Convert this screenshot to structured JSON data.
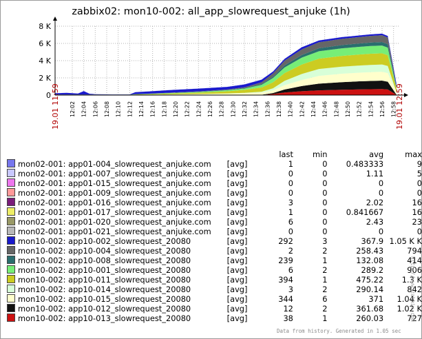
{
  "title": "zabbix02: mon10-002: all_app_slowrequest_anjuke  (1h)",
  "footer": "Data from history. Generated in 1.05 sec",
  "side_label": "http://www.zabbix.com",
  "colors": {
    "axis": "#000000",
    "grid": "#b0b0b0",
    "accent_red": "#b00000",
    "background": "#ffffff"
  },
  "legend_headers": {
    "last": "last",
    "min": "min",
    "avg": "avg",
    "max": "max"
  },
  "legend": [
    {
      "name": "mon02-001: app01-004_slowrequest_anjuke.com",
      "func": "[avg]",
      "last": "1",
      "min": "0",
      "avg": "0.483333",
      "max": "9",
      "color": "#7777ee"
    },
    {
      "name": "mon02-001: app01-007_slowrequest_anjuke.com",
      "func": "[avg]",
      "last": "0",
      "min": "0",
      "avg": "1.11",
      "max": "5",
      "color": "#c8c8ff"
    },
    {
      "name": "mon02-001: app01-015_slowrequest_anjuke.com",
      "func": "[avg]",
      "last": "0",
      "min": "0",
      "avg": "0",
      "max": "0",
      "color": "#ee77ee"
    },
    {
      "name": "mon02-001: app01-009_slowrequest_anjuke.com",
      "func": "[avg]",
      "last": "0",
      "min": "0",
      "avg": "0",
      "max": "0",
      "color": "#ff9999"
    },
    {
      "name": "mon02-001: app01-016_slowrequest_anjuke.com",
      "func": "[avg]",
      "last": "3",
      "min": "0",
      "avg": "2.02",
      "max": "16",
      "color": "#7a1c7a"
    },
    {
      "name": "mon02-001: app01-017_slowrequest_anjuke.com",
      "func": "[avg]",
      "last": "1",
      "min": "0",
      "avg": "0.841667",
      "max": "16",
      "color": "#eeee66"
    },
    {
      "name": "mon02-001: app01-020_slowrequest_anjuke.com",
      "func": "[avg]",
      "last": "6",
      "min": "0",
      "avg": "2.43",
      "max": "23",
      "color": "#999966"
    },
    {
      "name": "mon02-001: app01-021_slowrequest_anjuke.com",
      "func": "[avg]",
      "last": "0",
      "min": "0",
      "avg": "0",
      "max": "0",
      "color": "#b8b8b8"
    },
    {
      "name": "mon10-002: app10-002_slowrequest_20080",
      "func": "[avg]",
      "last": "292",
      "min": "3",
      "avg": "367.9",
      "max": "1.05 K K",
      "color": "#1a1acc"
    },
    {
      "name": "mon10-002: app10-004_slowrequest_20080",
      "func": "[avg]",
      "last": "2",
      "min": "2",
      "avg": "258.43",
      "max": "794",
      "color": "#666666"
    },
    {
      "name": "mon10-002: app10-008_slowrequest_20080",
      "func": "[avg]",
      "last": "239",
      "min": "1",
      "avg": "132.08",
      "max": "414",
      "color": "#2a6e6e"
    },
    {
      "name": "mon10-002: app10-001_slowrequest_20080",
      "func": "[avg]",
      "last": "6",
      "min": "2",
      "avg": "289.2",
      "max": "906",
      "color": "#77ee77"
    },
    {
      "name": "mon10-002: app10-011_slowrequest_20080",
      "func": "[avg]",
      "last": "394",
      "min": "1",
      "avg": "475.22",
      "max": "1.3 K",
      "color": "#cccc22"
    },
    {
      "name": "mon10-002: app10-014_slowrequest_20080",
      "func": "[avg]",
      "last": "3",
      "min": "2",
      "avg": "290.14",
      "max": "842",
      "color": "#d8ffd8"
    },
    {
      "name": "mon10-002: app10-015_slowrequest_20080",
      "func": "[avg]",
      "last": "344",
      "min": "6",
      "avg": "371",
      "max": "1.04 K",
      "color": "#ffffcc"
    },
    {
      "name": "mon10-002: app10-012_slowrequest_20080",
      "func": "[avg]",
      "last": "12",
      "min": "2",
      "avg": "361.68",
      "max": "1.02 K",
      "color": "#111111"
    },
    {
      "name": "mon10-002: app10-013_slowrequest_20080",
      "func": "[avg]",
      "last": "38",
      "min": "1",
      "avg": "260.03",
      "max": "727",
      "color": "#cc1111"
    }
  ],
  "chart_data": {
    "type": "area",
    "title": "zabbix02: mon10-002: all_app_slowrequest_anjuke  (1h)",
    "ylim": [
      0,
      8000
    ],
    "y_ticks": [
      0,
      2000,
      4000,
      6000,
      8000
    ],
    "y_tick_labels": [
      "0",
      "2 K",
      "4 K",
      "6 K",
      "8 K"
    ],
    "x_tick_labels": [
      "12:02",
      "12:04",
      "12:06",
      "12:08",
      "12:10",
      "12:12",
      "12:14",
      "12:16",
      "12:18",
      "12:20",
      "12:22",
      "12:24",
      "12:26",
      "12:28",
      "12:30",
      "12:32",
      "12:34",
      "12:36",
      "12:38",
      "12:40",
      "12:42",
      "12:44",
      "12:46",
      "12:48",
      "12:50",
      "12:52",
      "12:54",
      "12:56",
      "12:58"
    ],
    "x_range_labels": [
      "19.01 11:59",
      "19.01 12:59"
    ],
    "grid": true,
    "stacked": true,
    "x_minutes": [
      0,
      2,
      4,
      5,
      6,
      7,
      8,
      10,
      13,
      14,
      16,
      20,
      25,
      30,
      33,
      36,
      38,
      40,
      43,
      46,
      50,
      53,
      55,
      57,
      58,
      59.5
    ],
    "series_order_bottom_to_top": [
      "app10-013",
      "app10-012",
      "app10-015",
      "app10-014",
      "app10-011",
      "app10-001",
      "app10-008",
      "app10-004",
      "app10-002",
      "app01 (others)"
    ],
    "series": [
      {
        "name": "mon10-002: app10-013_slowrequest_20080",
        "color": "#cc1111",
        "values": [
          5,
          5,
          5,
          5,
          5,
          5,
          5,
          5,
          5,
          5,
          5,
          5,
          5,
          5,
          5,
          20,
          120,
          300,
          450,
          550,
          620,
          660,
          680,
          700,
          650,
          40
        ]
      },
      {
        "name": "mon10-002: app10-012_slowrequest_20080",
        "color": "#111111",
        "values": [
          5,
          5,
          5,
          5,
          5,
          5,
          5,
          5,
          5,
          5,
          5,
          5,
          5,
          5,
          10,
          20,
          120,
          350,
          600,
          780,
          880,
          940,
          960,
          980,
          900,
          20
        ]
      },
      {
        "name": "mon10-002: app10-015_slowrequest_20080",
        "color": "#ffffcc",
        "values": [
          10,
          10,
          10,
          10,
          10,
          10,
          10,
          10,
          10,
          20,
          30,
          60,
          100,
          150,
          200,
          250,
          300,
          500,
          700,
          900,
          980,
          1000,
          1020,
          1030,
          1000,
          300
        ]
      },
      {
        "name": "mon10-002: app10-014_slowrequest_20080",
        "color": "#d8ffd8",
        "values": [
          5,
          5,
          5,
          5,
          5,
          5,
          5,
          5,
          5,
          5,
          5,
          10,
          20,
          30,
          40,
          100,
          250,
          500,
          700,
          800,
          820,
          830,
          840,
          840,
          830,
          20
        ]
      },
      {
        "name": "mon10-002: app10-011_slowrequest_20080",
        "color": "#cccc22",
        "values": [
          10,
          10,
          10,
          20,
          10,
          10,
          10,
          10,
          10,
          40,
          50,
          100,
          150,
          250,
          350,
          500,
          700,
          900,
          1100,
          1200,
          1250,
          1280,
          1300,
          1300,
          1250,
          400
        ]
      },
      {
        "name": "mon10-002: app10-001_slowrequest_20080",
        "color": "#77ee77",
        "values": [
          10,
          10,
          10,
          10,
          10,
          10,
          10,
          10,
          10,
          20,
          30,
          50,
          80,
          120,
          150,
          300,
          500,
          650,
          800,
          860,
          880,
          890,
          900,
          900,
          880,
          20
        ]
      },
      {
        "name": "mon10-002: app10-008_slowrequest_20080",
        "color": "#2a6e6e",
        "values": [
          5,
          5,
          5,
          5,
          5,
          5,
          5,
          5,
          5,
          10,
          10,
          20,
          20,
          30,
          50,
          100,
          150,
          250,
          300,
          350,
          380,
          390,
          400,
          410,
          400,
          240
        ]
      },
      {
        "name": "mon10-002: app10-004_slowrequest_20080",
        "color": "#666666",
        "values": [
          5,
          5,
          5,
          5,
          5,
          5,
          5,
          5,
          5,
          10,
          20,
          30,
          50,
          60,
          100,
          200,
          400,
          550,
          650,
          700,
          720,
          750,
          770,
          790,
          780,
          20
        ]
      },
      {
        "name": "mon10-002: app10-002_slowrequest_20080",
        "color": "#1a1acc",
        "values": [
          150,
          200,
          120,
          400,
          100,
          50,
          30,
          20,
          20,
          220,
          250,
          300,
          320,
          300,
          330,
          300,
          200,
          200,
          250,
          200,
          200,
          180,
          180,
          180,
          170,
          280
        ]
      },
      {
        "name": "mon02-001 app01 series",
        "color": "#7777ee",
        "values": [
          10,
          10,
          10,
          10,
          10,
          10,
          10,
          10,
          10,
          10,
          10,
          10,
          10,
          10,
          10,
          10,
          10,
          10,
          10,
          10,
          10,
          10,
          10,
          10,
          10,
          10
        ]
      }
    ]
  }
}
